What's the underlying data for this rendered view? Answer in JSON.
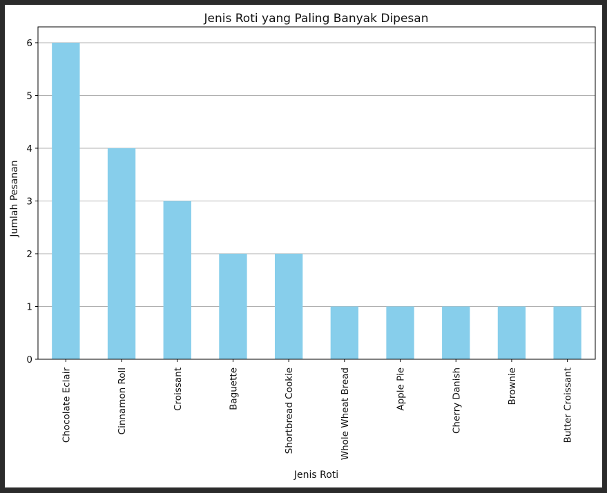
{
  "chart_data": {
    "type": "bar",
    "title": "Jenis Roti yang Paling Banyak Dipesan",
    "xlabel": "Jenis Roti",
    "ylabel": "Jumlah Pesanan",
    "categories": [
      "Chocolate Eclair",
      "Cinnamon Roll",
      "Croissant",
      "Baguette",
      "Shortbread Cookie",
      "Whole Wheat Bread",
      "Apple Pie",
      "Cherry Danish",
      "Brownie",
      "Butter Croissant"
    ],
    "values": [
      6,
      4,
      3,
      2,
      2,
      1,
      1,
      1,
      1,
      1
    ],
    "yticks": [
      0,
      1,
      2,
      3,
      4,
      5,
      6
    ],
    "ylim": [
      0,
      6.3
    ],
    "grid": "y",
    "bar_color": "#87ceeb",
    "grid_color": "#b0b0b0",
    "axis_color": "#000000"
  }
}
